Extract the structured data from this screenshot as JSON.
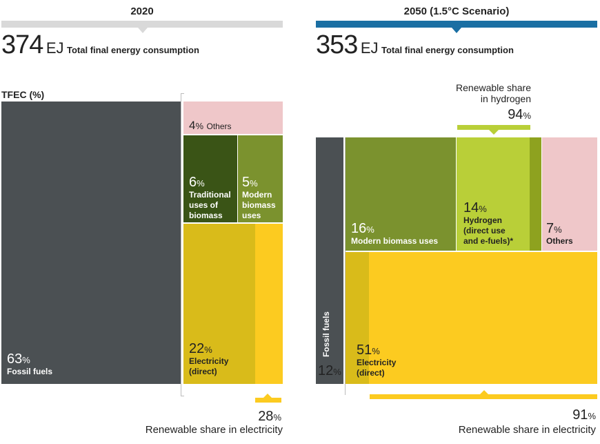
{
  "colors": {
    "fossil": "#4b5053",
    "others": "#efc7c9",
    "traditional_biomass": "#3a5416",
    "modern_biomass": "#7b922e",
    "electricity": "#d9bb1a",
    "electricity_renewable": "#fccb20",
    "hydrogen": "#b9cf38",
    "hydrogen_renewable": "#8ea21f",
    "bar_2020": "#d9d9d9",
    "bar_2050": "#1a6fa3"
  },
  "left": {
    "year_label": "2020",
    "total_value": "374",
    "total_unit": "EJ",
    "total_label": "Total final energy consumption",
    "axis_label": "TFEC (%)",
    "renewable_electricity_share": "28",
    "renewable_electricity_share_unit": "%",
    "renewable_electricity_label": "Renewable share in electricity"
  },
  "right": {
    "year_label": "2050 (1.5°C Scenario)",
    "total_value": "353",
    "total_unit": "EJ",
    "total_label": "Total final energy consumption",
    "hydrogen_share_label_line1": "Renewable share",
    "hydrogen_share_label_line2": "in hydrogen",
    "hydrogen_share": "94",
    "hydrogen_share_unit": "%",
    "renewable_electricity_share": "91",
    "renewable_electricity_share_unit": "%",
    "renewable_electricity_label": "Renewable share in electricity",
    "fossil_vertical_label": "Fossil fuels"
  },
  "chart_data": [
    {
      "type": "treemap",
      "title": "2020",
      "total": "374 EJ",
      "segments": [
        {
          "name": "Fossil fuels",
          "value": 63
        },
        {
          "name": "Others",
          "value": 4
        },
        {
          "name": "Traditional uses of biomass",
          "value": 6
        },
        {
          "name": "Modern biomass uses",
          "value": 5
        },
        {
          "name": "Electricity (direct)",
          "value": 22,
          "renewable_share": 28
        }
      ]
    },
    {
      "type": "treemap",
      "title": "2050 (1.5°C Scenario)",
      "total": "353 EJ",
      "segments": [
        {
          "name": "Fossil fuels",
          "value": 12
        },
        {
          "name": "Modern biomass uses",
          "value": 16
        },
        {
          "name": "Hydrogen (direct use and e-fuels)*",
          "value": 14,
          "renewable_share": 94
        },
        {
          "name": "Others",
          "value": 7
        },
        {
          "name": "Electricity (direct)",
          "value": 51,
          "renewable_share": 91
        }
      ]
    }
  ],
  "cells": {
    "l_fossil": {
      "pct": "63",
      "sym": "%",
      "label": "Fossil fuels"
    },
    "l_others": {
      "pct": "4",
      "sym": "%",
      "label": "Others"
    },
    "l_trad": {
      "pct": "6",
      "sym": "%",
      "label1": "Traditional",
      "label2": "uses of",
      "label3": "biomass"
    },
    "l_modern": {
      "pct": "5",
      "sym": "%",
      "label1": "Modern",
      "label2": "biomass",
      "label3": "uses"
    },
    "l_elec": {
      "pct": "22",
      "sym": "%",
      "label1": "Electricity",
      "label2": "(direct)"
    },
    "r_fossil": {
      "pct": "12",
      "sym": "%"
    },
    "r_modern": {
      "pct": "16",
      "sym": "%",
      "label": "Modern biomass uses"
    },
    "r_h2": {
      "pct": "14",
      "sym": "%",
      "label1": "Hydrogen",
      "label2": "(direct use",
      "label3": "and e-fuels)*"
    },
    "r_others": {
      "pct": "7",
      "sym": "%",
      "label": "Others"
    },
    "r_elec": {
      "pct": "51",
      "sym": "%",
      "label1": "Electricity",
      "label2": "(direct)"
    }
  }
}
